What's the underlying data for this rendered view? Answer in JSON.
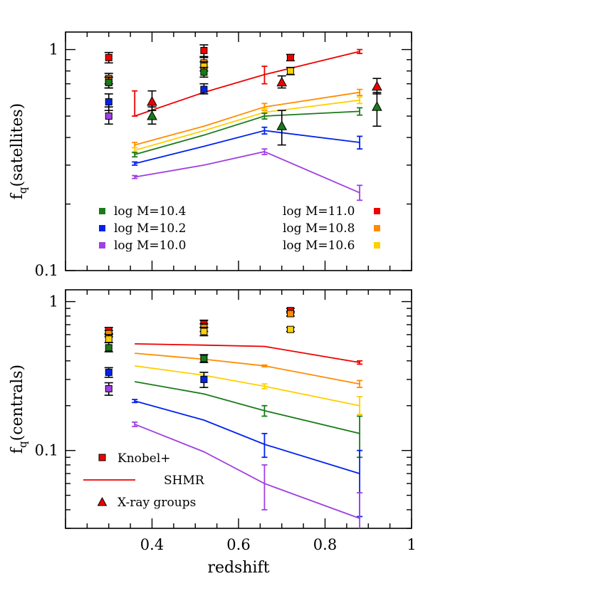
{
  "chart_data": [
    {
      "type": "line",
      "panel": "top",
      "ylabel_main": "f",
      "ylabel_sub": "q",
      "ylabel_rest": "(satellites)",
      "xlim": [
        0.2,
        1.0
      ],
      "ylim": [
        0.1,
        1.2
      ],
      "yscale": "log",
      "yticks": [
        {
          "v": 1,
          "label": "1"
        },
        {
          "v": 0.1,
          "label": "0.1"
        }
      ],
      "xtick_labels": [],
      "legend": [
        {
          "label": "log M=10.4",
          "color": "#1a7a1a",
          "side": "left"
        },
        {
          "label": "log M=10.2",
          "color": "#0022ee",
          "side": "left"
        },
        {
          "label": "log M=10.0",
          "color": "#a040e0",
          "side": "left"
        },
        {
          "label": "log M=11.0",
          "color": "#ee0000",
          "side": "right"
        },
        {
          "label": "log M=10.8",
          "color": "#ff8c00",
          "side": "right"
        },
        {
          "label": "log M=10.6",
          "color": "#ffd000",
          "side": "right"
        }
      ],
      "series": [
        {
          "color": "#ee0000",
          "x": [
            0.36,
            0.52,
            0.66,
            0.88
          ],
          "y": [
            0.5,
            0.64,
            0.77,
            0.98
          ],
          "err": [
            [
              0.5,
              0.65
            ],
            null,
            [
              0.7,
              0.84
            ],
            [
              0.96,
              1.0
            ]
          ]
        },
        {
          "color": "#ff8c00",
          "x": [
            0.36,
            0.52,
            0.66,
            0.88
          ],
          "y": [
            0.37,
            0.45,
            0.55,
            0.64
          ],
          "err": [
            [
              0.36,
              0.38
            ],
            null,
            [
              0.53,
              0.57
            ],
            [
              0.62,
              0.66
            ]
          ]
        },
        {
          "color": "#ffd000",
          "x": [
            0.36,
            0.52,
            0.66,
            0.88
          ],
          "y": [
            0.35,
            0.43,
            0.52,
            0.59
          ],
          "err": [
            [
              0.34,
              0.36
            ],
            null,
            [
              0.5,
              0.54
            ],
            [
              0.57,
              0.61
            ]
          ]
        },
        {
          "color": "#1a7a1a",
          "x": [
            0.36,
            0.52,
            0.66,
            0.88
          ],
          "y": [
            0.335,
            0.41,
            0.5,
            0.525
          ],
          "err": [
            [
              0.327,
              0.343
            ],
            null,
            [
              0.485,
              0.515
            ],
            [
              0.505,
              0.545
            ]
          ]
        },
        {
          "color": "#0022ee",
          "x": [
            0.36,
            0.52,
            0.66,
            0.88
          ],
          "y": [
            0.305,
            0.365,
            0.43,
            0.38
          ],
          "err": [
            [
              0.3,
              0.31
            ],
            null,
            [
              0.415,
              0.445
            ],
            [
              0.355,
              0.405
            ]
          ]
        },
        {
          "color": "#a040e0",
          "x": [
            0.36,
            0.52,
            0.66,
            0.88
          ],
          "y": [
            0.265,
            0.3,
            0.345,
            0.225
          ],
          "err": [
            [
              0.261,
              0.269
            ],
            null,
            [
              0.335,
              0.355
            ],
            [
              0.208,
              0.243
            ]
          ]
        }
      ],
      "squares": [
        {
          "color": "#ee0000",
          "x": 0.3,
          "y": 0.92,
          "lo": 0.87,
          "hi": 0.97
        },
        {
          "color": "#ff8c00",
          "x": 0.3,
          "y": 0.74,
          "lo": 0.7,
          "hi": 0.78
        },
        {
          "color": "#ffd000",
          "x": 0.3,
          "y": 0.71,
          "lo": 0.67,
          "hi": 0.75
        },
        {
          "color": "#1a7a1a",
          "x": 0.3,
          "y": 0.71,
          "lo": 0.67,
          "hi": 0.75
        },
        {
          "color": "#0022ee",
          "x": 0.3,
          "y": 0.58,
          "lo": 0.53,
          "hi": 0.63
        },
        {
          "color": "#a040e0",
          "x": 0.3,
          "y": 0.5,
          "lo": 0.46,
          "hi": 0.55
        },
        {
          "color": "#ee0000",
          "x": 0.52,
          "y": 0.99,
          "lo": 0.93,
          "hi": 1.05
        },
        {
          "color": "#ff8c00",
          "x": 0.52,
          "y": 0.87,
          "lo": 0.83,
          "hi": 0.92
        },
        {
          "color": "#ffd000",
          "x": 0.52,
          "y": 0.84,
          "lo": 0.8,
          "hi": 0.88
        },
        {
          "color": "#1a7a1a",
          "x": 0.52,
          "y": 0.79,
          "lo": 0.75,
          "hi": 0.83
        },
        {
          "color": "#0022ee",
          "x": 0.52,
          "y": 0.66,
          "lo": 0.63,
          "hi": 0.7
        },
        {
          "color": "#ee0000",
          "x": 0.72,
          "y": 0.92,
          "lo": 0.89,
          "hi": 0.95
        },
        {
          "color": "#ffd000",
          "x": 0.72,
          "y": 0.8,
          "lo": 0.77,
          "hi": 0.83
        }
      ],
      "triangles": [
        {
          "color": "#ee0000",
          "x": 0.4,
          "y": 0.58,
          "lo": 0.53,
          "hi": 0.65
        },
        {
          "color": "#1a7a1a",
          "x": 0.4,
          "y": 0.5,
          "lo": 0.46,
          "hi": 0.55
        },
        {
          "color": "#ee0000",
          "x": 0.7,
          "y": 0.71,
          "lo": 0.67,
          "hi": 0.76
        },
        {
          "color": "#1a7a1a",
          "x": 0.7,
          "y": 0.45,
          "lo": 0.37,
          "hi": 0.53
        },
        {
          "color": "#ee0000",
          "x": 0.92,
          "y": 0.68,
          "lo": 0.63,
          "hi": 0.74
        },
        {
          "color": "#1a7a1a",
          "x": 0.92,
          "y": 0.55,
          "lo": 0.45,
          "hi": 0.64
        }
      ]
    },
    {
      "type": "line",
      "panel": "bottom",
      "ylabel_main": "f",
      "ylabel_sub": "q",
      "ylabel_rest": "(centrals)",
      "xlabel": "redshift",
      "xlim": [
        0.2,
        1.0
      ],
      "ylim": [
        0.03,
        1.2
      ],
      "yscale": "log",
      "yticks": [
        {
          "v": 1,
          "label": "1"
        },
        {
          "v": 0.1,
          "label": "0.1"
        }
      ],
      "xtick_labels": [
        "0.4",
        "0.6",
        "0.8",
        "1"
      ],
      "legend": [
        {
          "label": "Knobel+",
          "marker": "square",
          "color": "#ee0000"
        },
        {
          "label": "SHMR",
          "marker": "line",
          "color": "#ee0000"
        },
        {
          "label": "X-ray groups",
          "marker": "triangle",
          "color": "#ee0000"
        }
      ],
      "series": [
        {
          "color": "#ee0000",
          "x": [
            0.36,
            0.52,
            0.66,
            0.88
          ],
          "y": [
            0.52,
            0.51,
            0.5,
            0.39
          ],
          "err": [
            null,
            null,
            null,
            [
              0.38,
              0.4
            ]
          ]
        },
        {
          "color": "#ff8c00",
          "x": [
            0.36,
            0.52,
            0.66,
            0.88
          ],
          "y": [
            0.45,
            0.41,
            0.37,
            0.28
          ],
          "err": [
            null,
            null,
            [
              0.365,
              0.375
            ],
            [
              0.265,
              0.295
            ]
          ]
        },
        {
          "color": "#ffd000",
          "x": [
            0.36,
            0.52,
            0.66,
            0.88
          ],
          "y": [
            0.37,
            0.32,
            0.27,
            0.2
          ],
          "err": [
            null,
            null,
            [
              0.26,
              0.28
            ],
            [
              0.175,
              0.23
            ]
          ]
        },
        {
          "color": "#1a7a1a",
          "x": [
            0.36,
            0.52,
            0.66,
            0.88
          ],
          "y": [
            0.29,
            0.24,
            0.185,
            0.13
          ],
          "err": [
            null,
            null,
            [
              0.17,
              0.2
            ],
            [
              0.09,
              0.17
            ]
          ]
        },
        {
          "color": "#0022ee",
          "x": [
            0.36,
            0.52,
            0.66,
            0.88
          ],
          "y": [
            0.215,
            0.16,
            0.11,
            0.07
          ],
          "err": [
            [
              0.21,
              0.22
            ],
            null,
            [
              0.09,
              0.13
            ],
            [
              0.036,
              0.1
            ]
          ]
        },
        {
          "color": "#a040e0",
          "x": [
            0.36,
            0.52,
            0.66,
            0.88
          ],
          "y": [
            0.15,
            0.098,
            0.06,
            0.035
          ],
          "err": [
            [
              0.145,
              0.155
            ],
            null,
            [
              0.04,
              0.08
            ],
            [
              0.02,
              0.052
            ]
          ]
        }
      ],
      "squares": [
        {
          "color": "#ee0000",
          "x": 0.3,
          "y": 0.64,
          "lo": 0.61,
          "hi": 0.67
        },
        {
          "color": "#ff8c00",
          "x": 0.3,
          "y": 0.61,
          "lo": 0.58,
          "hi": 0.64
        },
        {
          "color": "#ffd000",
          "x": 0.3,
          "y": 0.56,
          "lo": 0.53,
          "hi": 0.6
        },
        {
          "color": "#1a7a1a",
          "x": 0.3,
          "y": 0.49,
          "lo": 0.46,
          "hi": 0.53
        },
        {
          "color": "#0022ee",
          "x": 0.3,
          "y": 0.335,
          "lo": 0.31,
          "hi": 0.36
        },
        {
          "color": "#a040e0",
          "x": 0.3,
          "y": 0.26,
          "lo": 0.235,
          "hi": 0.285
        },
        {
          "color": "#ee0000",
          "x": 0.52,
          "y": 0.71,
          "lo": 0.67,
          "hi": 0.75
        },
        {
          "color": "#ff8c00",
          "x": 0.52,
          "y": 0.67,
          "lo": 0.63,
          "hi": 0.71
        },
        {
          "color": "#ffd000",
          "x": 0.52,
          "y": 0.63,
          "lo": 0.59,
          "hi": 0.67
        },
        {
          "color": "#1a7a1a",
          "x": 0.52,
          "y": 0.415,
          "lo": 0.39,
          "hi": 0.44
        },
        {
          "color": "#0022ee",
          "x": 0.52,
          "y": 0.3,
          "lo": 0.265,
          "hi": 0.335
        },
        {
          "color": "#ee0000",
          "x": 0.72,
          "y": 0.87,
          "lo": 0.84,
          "hi": 0.9
        },
        {
          "color": "#ff8c00",
          "x": 0.72,
          "y": 0.83,
          "lo": 0.8,
          "hi": 0.86
        },
        {
          "color": "#ffd000",
          "x": 0.72,
          "y": 0.65,
          "lo": 0.63,
          "hi": 0.67
        }
      ],
      "triangles": []
    }
  ]
}
